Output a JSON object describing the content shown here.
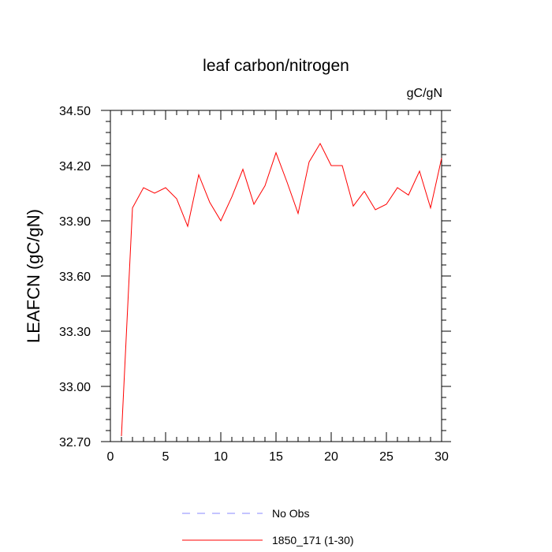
{
  "chart_data": {
    "type": "line",
    "title": "leaf carbon/nitrogen",
    "units": "gC/gN",
    "ylabel": "LEAFCN  (gC/gN)",
    "xlabel": "",
    "xlim": [
      0,
      30
    ],
    "ylim": [
      32.7,
      34.5
    ],
    "xticks": [
      0,
      5,
      10,
      15,
      20,
      25,
      30
    ],
    "yticks": [
      32.7,
      33.0,
      33.3,
      33.6,
      33.9,
      34.2,
      34.5
    ],
    "ytick_labels": [
      "32.70",
      "33.00",
      "33.30",
      "33.60",
      "33.90",
      "34.20",
      "34.50"
    ],
    "grid": false,
    "legend_position": "bottom",
    "series": [
      {
        "name": "No Obs",
        "color": "#8888ff",
        "style": "dashed",
        "x": [],
        "values": []
      },
      {
        "name": "1850_171 (1-30)",
        "color": "#ff0000",
        "style": "solid",
        "x": [
          1,
          2,
          3,
          4,
          5,
          6,
          7,
          8,
          9,
          10,
          11,
          12,
          13,
          14,
          15,
          16,
          17,
          18,
          19,
          20,
          21,
          22,
          23,
          24,
          25,
          26,
          27,
          28,
          29,
          30
        ],
        "values": [
          32.73,
          33.97,
          34.08,
          34.05,
          34.08,
          34.02,
          33.87,
          34.15,
          34.0,
          33.9,
          34.03,
          34.18,
          33.99,
          34.09,
          34.27,
          34.11,
          33.94,
          34.22,
          34.32,
          34.2,
          34.2,
          33.98,
          34.06,
          33.96,
          33.99,
          34.08,
          34.04,
          34.17,
          33.97,
          34.24
        ]
      }
    ]
  }
}
